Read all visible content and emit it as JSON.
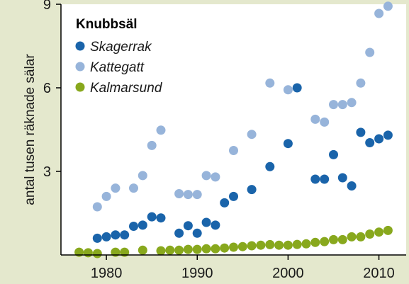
{
  "chart_data": {
    "type": "scatter",
    "title": "Knubbsäl",
    "xlabel": "",
    "ylabel": "antal tusen räknade sälar",
    "xlim": [
      1975,
      2013
    ],
    "ylim": [
      0,
      9
    ],
    "xticks": [
      1980,
      1990,
      2000,
      2010
    ],
    "yticks": [
      3,
      6,
      9
    ],
    "grid": false,
    "legend_position": "top-left",
    "background": "#e4e8cd",
    "plot_background": "#ffffff",
    "series": [
      {
        "name": "Skagerrak",
        "color": "#1a64aa",
        "points": [
          [
            1979,
            0.6
          ],
          [
            1980,
            0.65
          ],
          [
            1981,
            0.72
          ],
          [
            1982,
            0.72
          ],
          [
            1983,
            1.03
          ],
          [
            1984,
            1.07
          ],
          [
            1985,
            1.37
          ],
          [
            1986,
            1.33
          ],
          [
            1988,
            0.78
          ],
          [
            1989,
            1.05
          ],
          [
            1990,
            0.78
          ],
          [
            1991,
            1.17
          ],
          [
            1992,
            1.07
          ],
          [
            1993,
            1.87
          ],
          [
            1994,
            2.1
          ],
          [
            1996,
            2.35
          ],
          [
            1998,
            3.17
          ],
          [
            2000,
            4.0
          ],
          [
            2001,
            6.0
          ],
          [
            2003,
            2.72
          ],
          [
            2004,
            2.72
          ],
          [
            2005,
            3.6
          ],
          [
            2006,
            2.77
          ],
          [
            2007,
            2.48
          ],
          [
            2008,
            4.4
          ],
          [
            2009,
            4.03
          ],
          [
            2010,
            4.17
          ],
          [
            2011,
            4.3
          ]
        ]
      },
      {
        "name": "Kattegatt",
        "color": "#97b4da",
        "points": [
          [
            1979,
            1.73
          ],
          [
            1980,
            2.1
          ],
          [
            1981,
            2.4
          ],
          [
            1983,
            2.4
          ],
          [
            1984,
            2.85
          ],
          [
            1985,
            3.93
          ],
          [
            1986,
            4.48
          ],
          [
            1988,
            2.2
          ],
          [
            1989,
            2.17
          ],
          [
            1990,
            2.17
          ],
          [
            1991,
            2.85
          ],
          [
            1992,
            2.8
          ],
          [
            1994,
            3.75
          ],
          [
            1996,
            4.33
          ],
          [
            1998,
            6.17
          ],
          [
            2000,
            5.93
          ],
          [
            2003,
            4.87
          ],
          [
            2004,
            4.77
          ],
          [
            2005,
            5.4
          ],
          [
            2006,
            5.4
          ],
          [
            2007,
            5.47
          ],
          [
            2008,
            6.17
          ],
          [
            2009,
            7.27
          ],
          [
            2010,
            8.67
          ],
          [
            2011,
            8.93
          ]
        ]
      },
      {
        "name": "Kalmarsund",
        "color": "#88a81d",
        "points": [
          [
            1977,
            0.1
          ],
          [
            1978,
            0.08
          ],
          [
            1979,
            0.05
          ],
          [
            1981,
            0.1
          ],
          [
            1982,
            0.1
          ],
          [
            1984,
            0.17
          ],
          [
            1986,
            0.15
          ],
          [
            1987,
            0.17
          ],
          [
            1988,
            0.17
          ],
          [
            1989,
            0.2
          ],
          [
            1990,
            0.2
          ],
          [
            1991,
            0.22
          ],
          [
            1992,
            0.22
          ],
          [
            1993,
            0.25
          ],
          [
            1994,
            0.28
          ],
          [
            1995,
            0.3
          ],
          [
            1996,
            0.33
          ],
          [
            1997,
            0.35
          ],
          [
            1998,
            0.37
          ],
          [
            1999,
            0.35
          ],
          [
            2000,
            0.35
          ],
          [
            2001,
            0.38
          ],
          [
            2002,
            0.4
          ],
          [
            2003,
            0.45
          ],
          [
            2004,
            0.48
          ],
          [
            2005,
            0.55
          ],
          [
            2006,
            0.55
          ],
          [
            2007,
            0.65
          ],
          [
            2008,
            0.65
          ],
          [
            2009,
            0.75
          ],
          [
            2010,
            0.82
          ],
          [
            2011,
            0.88
          ]
        ]
      }
    ]
  }
}
